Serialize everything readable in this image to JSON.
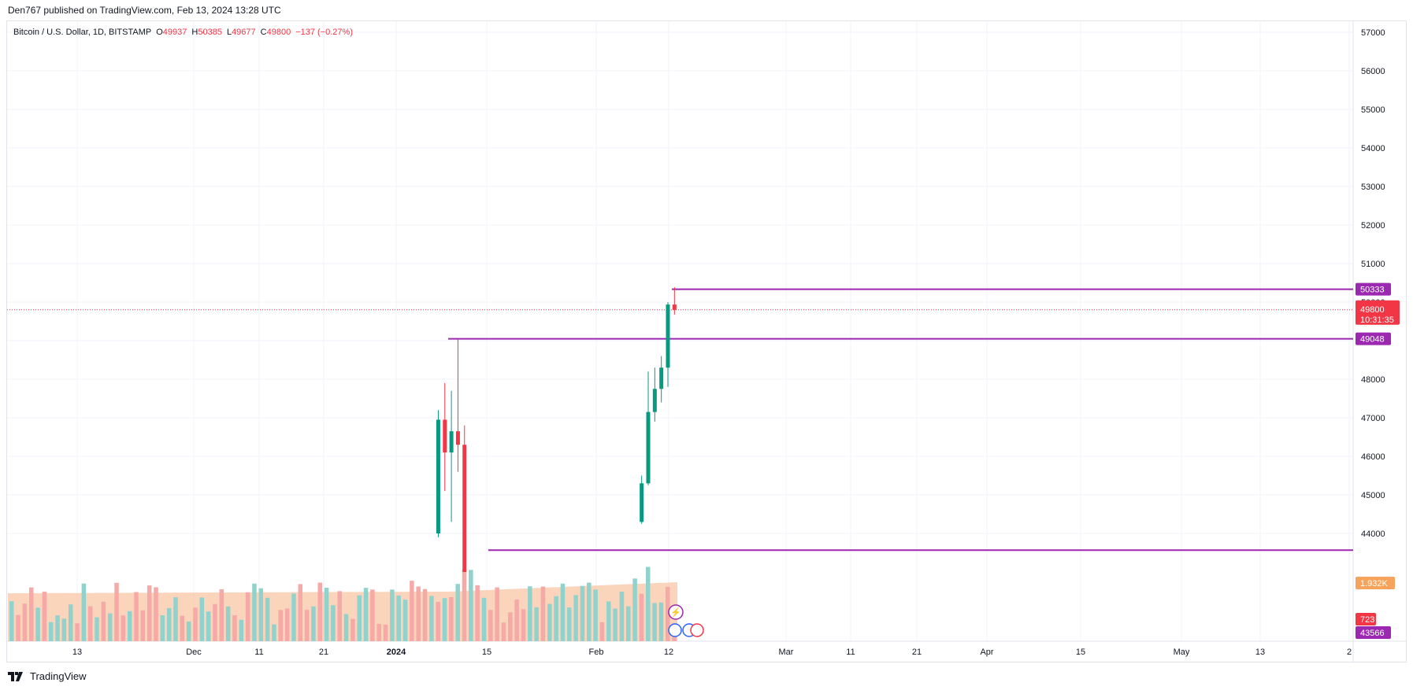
{
  "header": {
    "publisher_text": "Den767 published on TradingView.com, Feb 13, 2024 13:28 UTC"
  },
  "footer": {
    "brand": "TradingView"
  },
  "legend": {
    "symbol": "Bitcoin / U.S. Dollar, 1D, BITSTAMP",
    "o_label": "O",
    "o_value": "49937",
    "h_label": "H",
    "h_value": "50385",
    "l_label": "L",
    "l_value": "49677",
    "c_label": "C",
    "c_value": "49800",
    "change": "−137 (−0.27%)"
  },
  "colors": {
    "up": "#089981",
    "down": "#f23645",
    "up_volume": "#92d2cc",
    "down_volume": "#f7a9a7",
    "level_line": "#9c27b0",
    "volume_profile": "#f8c5a4",
    "grid": "#f0f3fa",
    "axis_text": "#131722"
  },
  "chart_data": {
    "type": "candlestick",
    "title": "Bitcoin / U.S. Dollar, 1D, BITSTAMP",
    "ylim": [
      43000,
      57400
    ],
    "y_ticks": [
      44000,
      45000,
      46000,
      47000,
      48000,
      49000,
      50000,
      51000,
      52000,
      53000,
      54000,
      55000,
      56000,
      57000
    ],
    "x_tick_labels": [
      "13",
      "Dec",
      "11",
      "21",
      "2024",
      "15",
      "Feb",
      "12",
      "Mar",
      "11",
      "21",
      "Apr",
      "15",
      "May",
      "13",
      "2"
    ],
    "candles": [
      {
        "date": "2024-01-08",
        "o": 44000,
        "h": 47200,
        "l": 43900,
        "c": 46950
      },
      {
        "date": "2024-01-09",
        "o": 46950,
        "h": 47900,
        "l": 45100,
        "c": 46100
      },
      {
        "date": "2024-01-10",
        "o": 46100,
        "h": 47700,
        "l": 44300,
        "c": 46650
      },
      {
        "date": "2024-01-11",
        "o": 46650,
        "h": 49048,
        "l": 45600,
        "c": 46300
      },
      {
        "date": "2024-01-12",
        "o": 46300,
        "h": 46800,
        "l": 43000,
        "c": 43000
      },
      {
        "date": "2024-02-08",
        "o": 44300,
        "h": 45500,
        "l": 44250,
        "c": 45300
      },
      {
        "date": "2024-02-09",
        "o": 45300,
        "h": 48200,
        "l": 45250,
        "c": 47150
      },
      {
        "date": "2024-02-10",
        "o": 47150,
        "h": 48300,
        "l": 46900,
        "c": 47750
      },
      {
        "date": "2024-02-11",
        "o": 47750,
        "h": 48600,
        "l": 47400,
        "c": 48300
      },
      {
        "date": "2024-02-12",
        "o": 48300,
        "h": 50000,
        "l": 47800,
        "c": 49937
      },
      {
        "date": "2024-02-13",
        "o": 49937,
        "h": 50385,
        "l": 49677,
        "c": 49800
      }
    ],
    "horizontal_levels": [
      50333,
      49048,
      43566
    ],
    "last_price": 49800,
    "countdown": "10:31:35",
    "volume_labels": {
      "volume_ma": "1.932K",
      "volume": "723"
    },
    "volume_profile": true,
    "grid": true
  },
  "axis_labels": {
    "level_high": "50333",
    "level_mid": "49048",
    "level_low": "43566",
    "price": "49800",
    "countdown": "10:31:35",
    "vol_ma": "1.932K",
    "vol": "723"
  }
}
